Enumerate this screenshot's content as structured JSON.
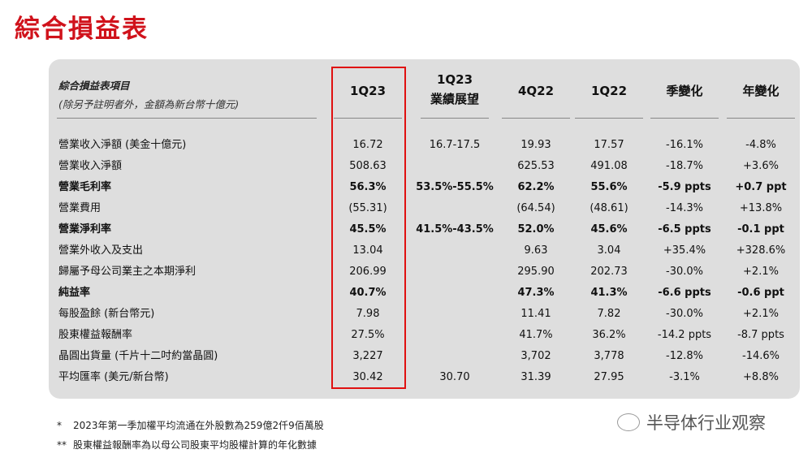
{
  "title": "綜合損益表",
  "table": {
    "header_label": "綜合損益表項目",
    "header_sub": "(除另予註明者外，金額為新台幣十億元)",
    "columns": [
      "1Q23",
      "1Q23\n業績展望",
      "4Q22",
      "1Q22",
      "季變化",
      "年變化"
    ],
    "rows": [
      {
        "label": "營業收入淨額 (美金十億元)",
        "bold": false,
        "values": [
          "16.72",
          "16.7-17.5",
          "19.93",
          "17.57",
          "-16.1%",
          "-4.8%"
        ]
      },
      {
        "label": "營業收入淨額",
        "bold": false,
        "values": [
          "508.63",
          "",
          "625.53",
          "491.08",
          "-18.7%",
          "+3.6%"
        ]
      },
      {
        "label": "營業毛利率",
        "bold": true,
        "values": [
          "56.3%",
          "53.5%-55.5%",
          "62.2%",
          "55.6%",
          "-5.9 ppts",
          "+0.7 ppt"
        ]
      },
      {
        "label": "營業費用",
        "bold": false,
        "values": [
          "(55.31)",
          "",
          "(64.54)",
          "(48.61)",
          "-14.3%",
          "+13.8%"
        ]
      },
      {
        "label": "營業淨利率",
        "bold": true,
        "values": [
          "45.5%",
          "41.5%-43.5%",
          "52.0%",
          "45.6%",
          "-6.5 ppts",
          "-0.1 ppt"
        ]
      },
      {
        "label": "營業外收入及支出",
        "bold": false,
        "values": [
          "13.04",
          "",
          "9.63",
          "3.04",
          "+35.4%",
          "+328.6%"
        ]
      },
      {
        "label": "歸屬予母公司業主之本期淨利",
        "bold": false,
        "values": [
          "206.99",
          "",
          "295.90",
          "202.73",
          "-30.0%",
          "+2.1%"
        ]
      },
      {
        "label": "純益率",
        "bold": true,
        "values": [
          "40.7%",
          "",
          "47.3%",
          "41.3%",
          "-6.6 ppts",
          "-0.6 ppt"
        ]
      },
      {
        "label": "每股盈餘 (新台幣元)",
        "bold": false,
        "values": [
          "7.98",
          "",
          "11.41",
          "7.82",
          "-30.0%",
          "+2.1%"
        ]
      },
      {
        "label": "股東權益報酬率",
        "bold": false,
        "values": [
          "27.5%",
          "",
          "41.7%",
          "36.2%",
          "-14.2 ppts",
          "-8.7 ppts"
        ]
      },
      {
        "label": "晶圓出貨量 (千片十二吋約當晶圓)",
        "bold": false,
        "values": [
          "3,227",
          "",
          "3,702",
          "3,778",
          "-12.8%",
          "-14.6%"
        ]
      },
      {
        "label": "平均匯率 (美元/新台幣)",
        "bold": false,
        "values": [
          "30.42",
          "30.70",
          "31.39",
          "27.95",
          "-3.1%",
          "+8.8%"
        ]
      }
    ]
  },
  "notes": [
    {
      "mark": "*",
      "text": "2023年第一季加權平均流通在外股數為259億2仟9佰萬股"
    },
    {
      "mark": "**",
      "text": "股東權益報酬率為以母公司股東平均股權計算的年化數據"
    }
  ],
  "watermark": "半导体行业观察",
  "colors": {
    "title": "#d0121b",
    "highlight_box": "#e01010",
    "panel": "#dedede"
  }
}
